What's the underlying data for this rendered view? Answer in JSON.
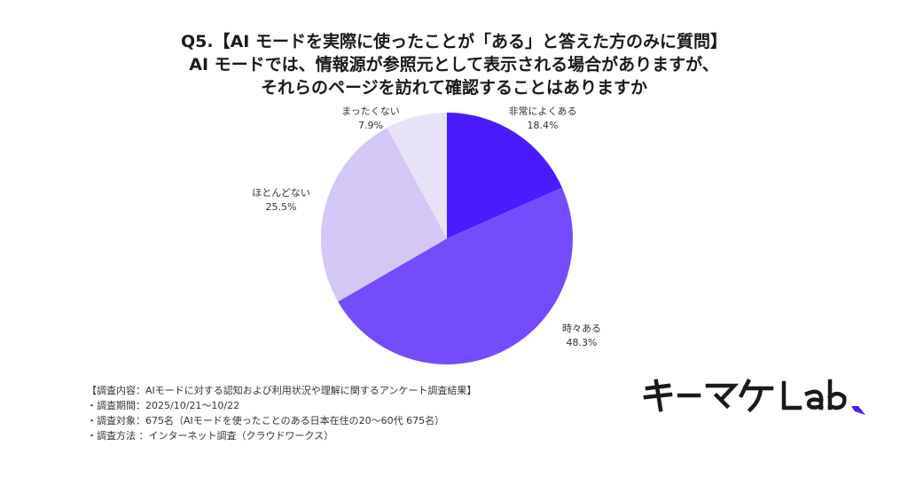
{
  "title_lines": [
    "Q5.【AI モードを実際に使ったことが「ある」と答えた方のみに質問】",
    "AI モードでは、情報源が参照元として表示される場合がありますが、",
    "それらのページを訪れて確認することはありますか"
  ],
  "chart_data": {
    "type": "pie",
    "categories": [
      "非常によくある",
      "時々ある",
      "ほとんどない",
      "まったくない"
    ],
    "values": [
      18.4,
      48.3,
      25.5,
      7.9
    ],
    "value_labels": [
      "18.4%",
      "48.3%",
      "25.5%",
      "7.9%"
    ],
    "colors": [
      "#4a1bff",
      "#744cfb",
      "#d3c7f5",
      "#e8e2f8"
    ],
    "start_angle": "12 o'clock",
    "direction": "clockwise"
  },
  "footer": [
    "【調査内容：AIモードに対する認知および利用状況や理解に関するアンケート調査結果】",
    "・調査期間：2025/10/21〜10/22",
    "・調査対象：675名（AIモードを使ったことのある日本在住の20〜60代 675名）",
    "・調査方法 ：インターネット調査（クラウドワークス）"
  ],
  "logo": {
    "text": "キーマケLab.",
    "color": "#1a1a1a",
    "accent_color": "#4a1bff"
  }
}
